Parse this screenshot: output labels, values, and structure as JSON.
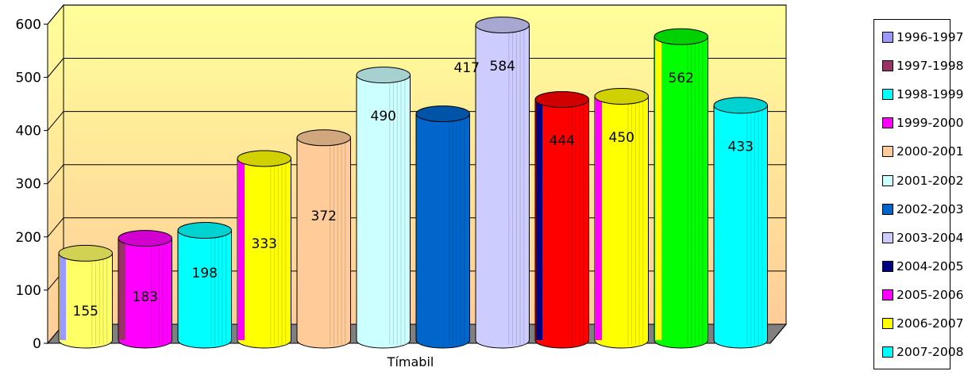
{
  "chart_data": {
    "type": "bar",
    "style": "3d-cylinder",
    "xlabel": "Tímabil",
    "ylim": [
      0,
      600
    ],
    "yticks": [
      "0",
      "100",
      "200",
      "300",
      "400",
      "500",
      "600"
    ],
    "grid": true,
    "legend_position": "right",
    "categories": [
      "1996-1997",
      "1997-1998",
      "1998-1999",
      "1999-2000",
      "2000-2001",
      "2001-2002",
      "2002-2003",
      "2003-2004",
      "2004-2005",
      "2005-2006",
      "2006-2007",
      "2007-2008"
    ],
    "series": [
      {
        "name": "1996-1997",
        "value": 155,
        "label": "155",
        "color": "#9999ff"
      },
      {
        "name": "1997-1998",
        "value": 183,
        "label": "183",
        "color": "#993366"
      },
      {
        "name": "1998-1999",
        "value": 198,
        "label": "198",
        "color": "#00ffff"
      },
      {
        "name": "1999-2000",
        "value": 333,
        "label": "333",
        "color": "#ff00ff"
      },
      {
        "name": "2000-2001",
        "value": 372,
        "label": "372",
        "color": "#ffcc99"
      },
      {
        "name": "2001-2002",
        "value": 490,
        "label": "490",
        "color": "#ccffff"
      },
      {
        "name": "2002-2003",
        "value": 417,
        "label": "417",
        "color": "#0066cc"
      },
      {
        "name": "2003-2004",
        "value": 584,
        "label": "584",
        "color": "#ccccff"
      },
      {
        "name": "2004-2005",
        "value": 444,
        "label": "444",
        "color": "#000080"
      },
      {
        "name": "2005-2006",
        "value": 450,
        "label": "450",
        "color": "#ff00ff"
      },
      {
        "name": "2006-2007",
        "value": 562,
        "label": "562",
        "color": "#ffff00"
      },
      {
        "name": "2007-2008",
        "value": 433,
        "label": "433",
        "color": "#00ffff"
      }
    ],
    "bar_fill_colors": [
      "#ffff66",
      "#ff00ff",
      "#00ffff",
      "#ffff00",
      "#ffcc99",
      "#ccffff",
      "#0066cc",
      "#ccccff",
      "#ff0000",
      "#ffff00",
      "#00ff00",
      "#00ffff"
    ],
    "background_colors": {
      "top": "#ffff99",
      "bottom": "#ffcc99",
      "floor": "#808080"
    }
  }
}
